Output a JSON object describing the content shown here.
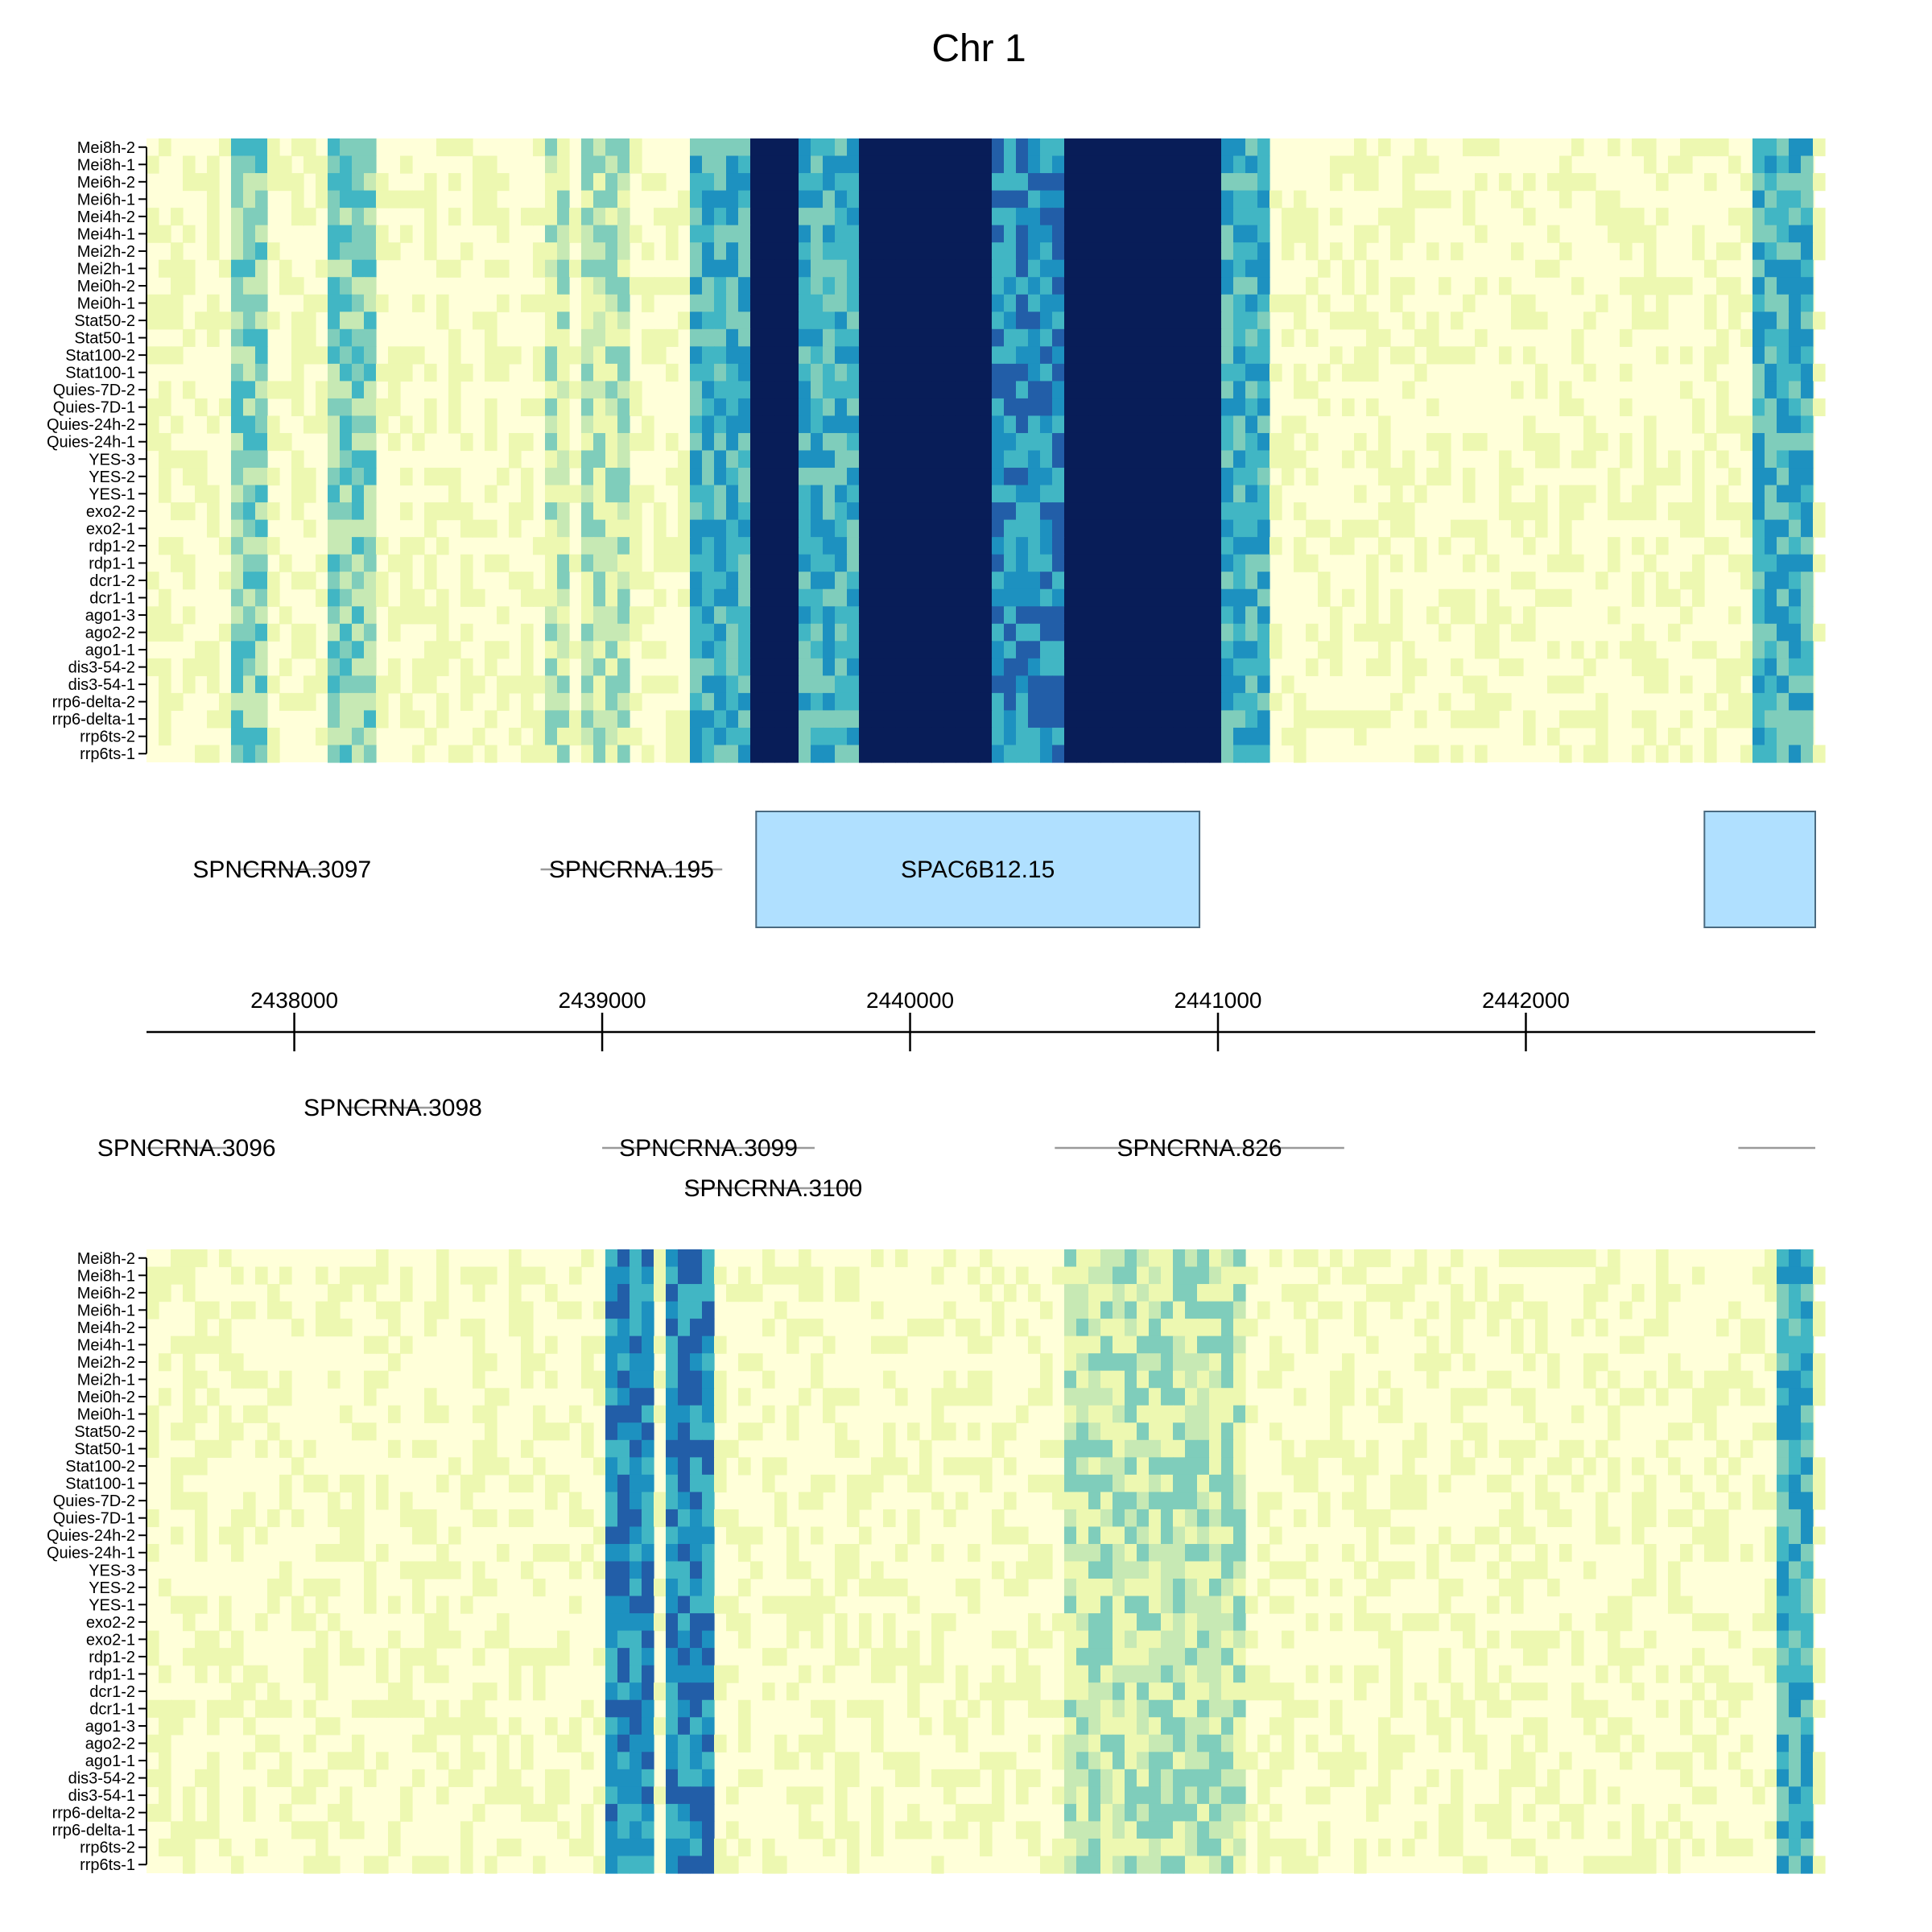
{
  "chart_data": {
    "type": "heatmap",
    "title": "Chr 1",
    "rows": [
      "Mei8h-2",
      "Mei8h-1",
      "Mei6h-2",
      "Mei6h-1",
      "Mei4h-2",
      "Mei4h-1",
      "Mei2h-2",
      "Mei2h-1",
      "Mei0h-2",
      "Mei0h-1",
      "Stat50-2",
      "Stat50-1",
      "Stat100-2",
      "Stat100-1",
      "Quies-7D-2",
      "Quies-7D-1",
      "Quies-24h-2",
      "Quies-24h-1",
      "YES-3",
      "YES-2",
      "YES-1",
      "exo2-2",
      "exo2-1",
      "rdp1-2",
      "rdp1-1",
      "dcr1-2",
      "dcr1-1",
      "ago1-3",
      "ago2-2",
      "ago1-1",
      "dis3-54-2",
      "dis3-54-1",
      "rrp6-delta-2",
      "rrp6-delta-1",
      "rrp6ts-2",
      "rrp6ts-1"
    ],
    "xlim": [
      2437520,
      2442940
    ],
    "x_ticks": [
      2438000,
      2439000,
      2440000,
      2441000,
      2442000
    ],
    "color_scale": [
      "#ffffd9",
      "#edf8b1",
      "#c7e9b4",
      "#7fcdbb",
      "#41b6c4",
      "#1d91c0",
      "#225ea8",
      "#253494",
      "#081d58"
    ],
    "forward_strand_heatmap": {
      "bands": [
        {
          "start": 2437790,
          "end": 2437920,
          "level": 3
        },
        {
          "start": 2438100,
          "end": 2438270,
          "level": 3
        },
        {
          "start": 2438810,
          "end": 2438880,
          "level": 2
        },
        {
          "start": 2438950,
          "end": 2439100,
          "level": 2
        },
        {
          "start": 2439270,
          "end": 2439500,
          "level": 4
        },
        {
          "start": 2439500,
          "end": 2439640,
          "level": 8
        },
        {
          "start": 2439640,
          "end": 2439840,
          "level": 4
        },
        {
          "start": 2439840,
          "end": 2440250,
          "level": 8
        },
        {
          "start": 2440250,
          "end": 2440500,
          "level": 5
        },
        {
          "start": 2440500,
          "end": 2441030,
          "level": 8
        },
        {
          "start": 2441030,
          "end": 2441160,
          "level": 4
        },
        {
          "start": 2442730,
          "end": 2442940,
          "level": 4
        }
      ]
    },
    "reverse_strand_heatmap": {
      "bands": [
        {
          "start": 2439000,
          "end": 2439170,
          "level": 5
        },
        {
          "start": 2439220,
          "end": 2439370,
          "level": 5
        },
        {
          "start": 2440520,
          "end": 2441100,
          "level": 2
        },
        {
          "start": 2442820,
          "end": 2442940,
          "level": 4
        }
      ]
    },
    "forward_genes": [
      {
        "label": "SPNCRNA.3097",
        "start": 2437820,
        "end": 2438100,
        "type": "ncrna",
        "level": 0
      },
      {
        "label": "SPNCRNA.195",
        "start": 2438800,
        "end": 2439390,
        "type": "ncrna",
        "level": 0
      },
      {
        "label": "SPAC6B12.15",
        "start": 2439500,
        "end": 2440940,
        "type": "gene",
        "level": 0
      },
      {
        "label": "",
        "start": 2442580,
        "end": 2442940,
        "type": "gene",
        "level": 0
      }
    ],
    "reverse_genes": [
      {
        "label": "SPNCRNA.3096",
        "start": 2437520,
        "end": 2437780,
        "type": "ncrna",
        "level": 1
      },
      {
        "label": "SPNCRNA.3098",
        "start": 2438170,
        "end": 2438470,
        "type": "ncrna",
        "level": 0
      },
      {
        "label": "SPNCRNA.3099",
        "start": 2439000,
        "end": 2439690,
        "type": "ncrna",
        "level": 1
      },
      {
        "label": "SPNCRNA.3100",
        "start": 2439270,
        "end": 2439840,
        "type": "ncrna",
        "level": 2
      },
      {
        "label": "SPNCRNA.826",
        "start": 2440470,
        "end": 2441410,
        "type": "ncrna",
        "level": 1
      },
      {
        "label": "",
        "start": 2442690,
        "end": 2442940,
        "type": "ncrna",
        "level": 1
      }
    ]
  }
}
